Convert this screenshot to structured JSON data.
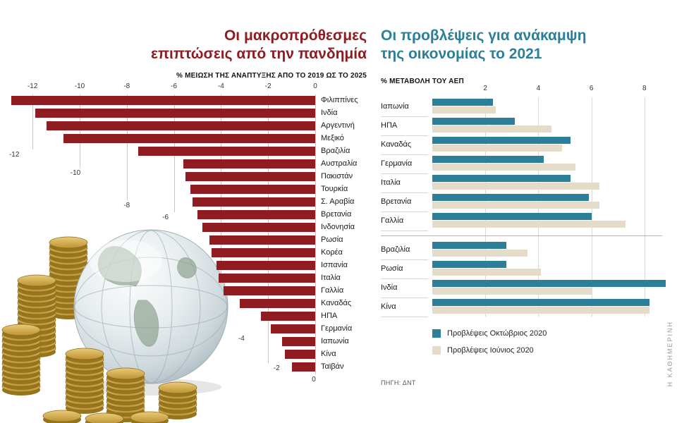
{
  "page": {
    "brand": "Η ΚΑΘΗΜΕΡΙΝΗ",
    "source_label": "ΠΗΓΗ: ΔΝΤ"
  },
  "photo": {
    "alt": "Glass globe with etched world map beside stacks of gold coins"
  },
  "chart_data": [
    {
      "id": "pandemic-long-term-impact",
      "type": "bar",
      "orientation": "horizontal",
      "title_lines": [
        "Οι μακροπρόθεσμες",
        "επιπτώσεις από την πανδημία"
      ],
      "subtitle": "% ΜΕΙΩΣΗ ΤΗΣ ΑΝΑΠΤΥΞΗΣ ΑΠΟ ΤΟ 2019 ΩΣ ΤΟ 2025",
      "title_color": "#8e1c21",
      "bar_color": "#8e1c21",
      "grid": true,
      "xlim": [
        -13.5,
        0
      ],
      "axis_ticks": [
        -12,
        -10,
        -8,
        -6,
        -4,
        -2,
        0
      ],
      "categories": [
        "Φιλιππίνες",
        "Ινδία",
        "Αργεντινή",
        "Μεξικό",
        "Βραζιλία",
        "Αυστραλία",
        "Πακιστάν",
        "Τουρκία",
        "Σ. Αραβία",
        "Βρετανία",
        "Ινδονησία",
        "Ρωσία",
        "Κορέα",
        "Ισπανία",
        "Ιταλία",
        "Γαλλία",
        "Καναδάς",
        "ΗΠΑ",
        "Γερμανία",
        "Ιαπωνία",
        "Κίνα",
        "Ταϊβάν"
      ],
      "values": [
        -12.9,
        -11.9,
        -11.4,
        -10.7,
        -7.5,
        -5.6,
        -5.5,
        -5.3,
        -5.2,
        -5.0,
        -4.8,
        -4.5,
        -4.4,
        -4.2,
        -4.1,
        -3.9,
        -3.2,
        -2.3,
        -1.9,
        -1.4,
        -1.3,
        -1.0
      ]
    },
    {
      "id": "recovery-forecast-2021",
      "type": "bar",
      "orientation": "horizontal",
      "title_lines": [
        "Οι προβλέψεις για ανάκαμψη",
        "της οικονομίας το 2021"
      ],
      "subtitle": "% ΜΕΤΑΒΟΛΗ ΤΟΥ ΑΕΠ",
      "title_color": "#2c7f99",
      "grid": true,
      "xlim": [
        0,
        9
      ],
      "axis_ticks": [
        2,
        4,
        6,
        8
      ],
      "legend_position": "bottom",
      "group_break_after_index": 6,
      "categories": [
        "Ιαπωνία",
        "ΗΠΑ",
        "Καναδάς",
        "Γερμανία",
        "Ιταλία",
        "Βρετανία",
        "Γαλλία",
        "Βραζιλία",
        "Ρωσία",
        "Ινδία",
        "Κίνα"
      ],
      "series": [
        {
          "name": "Προβλέψεις Οκτώβριος 2020",
          "color": "#2c7f99",
          "values": [
            2.3,
            3.1,
            5.2,
            4.2,
            5.2,
            5.9,
            6.0,
            2.8,
            2.8,
            8.8,
            8.2
          ]
        },
        {
          "name": "Προβλέψεις Ιούνιος 2020",
          "color": "#e4dbc9",
          "values": [
            2.4,
            4.5,
            4.9,
            5.4,
            6.3,
            6.3,
            7.3,
            3.6,
            4.1,
            6.0,
            8.2
          ]
        }
      ]
    }
  ]
}
